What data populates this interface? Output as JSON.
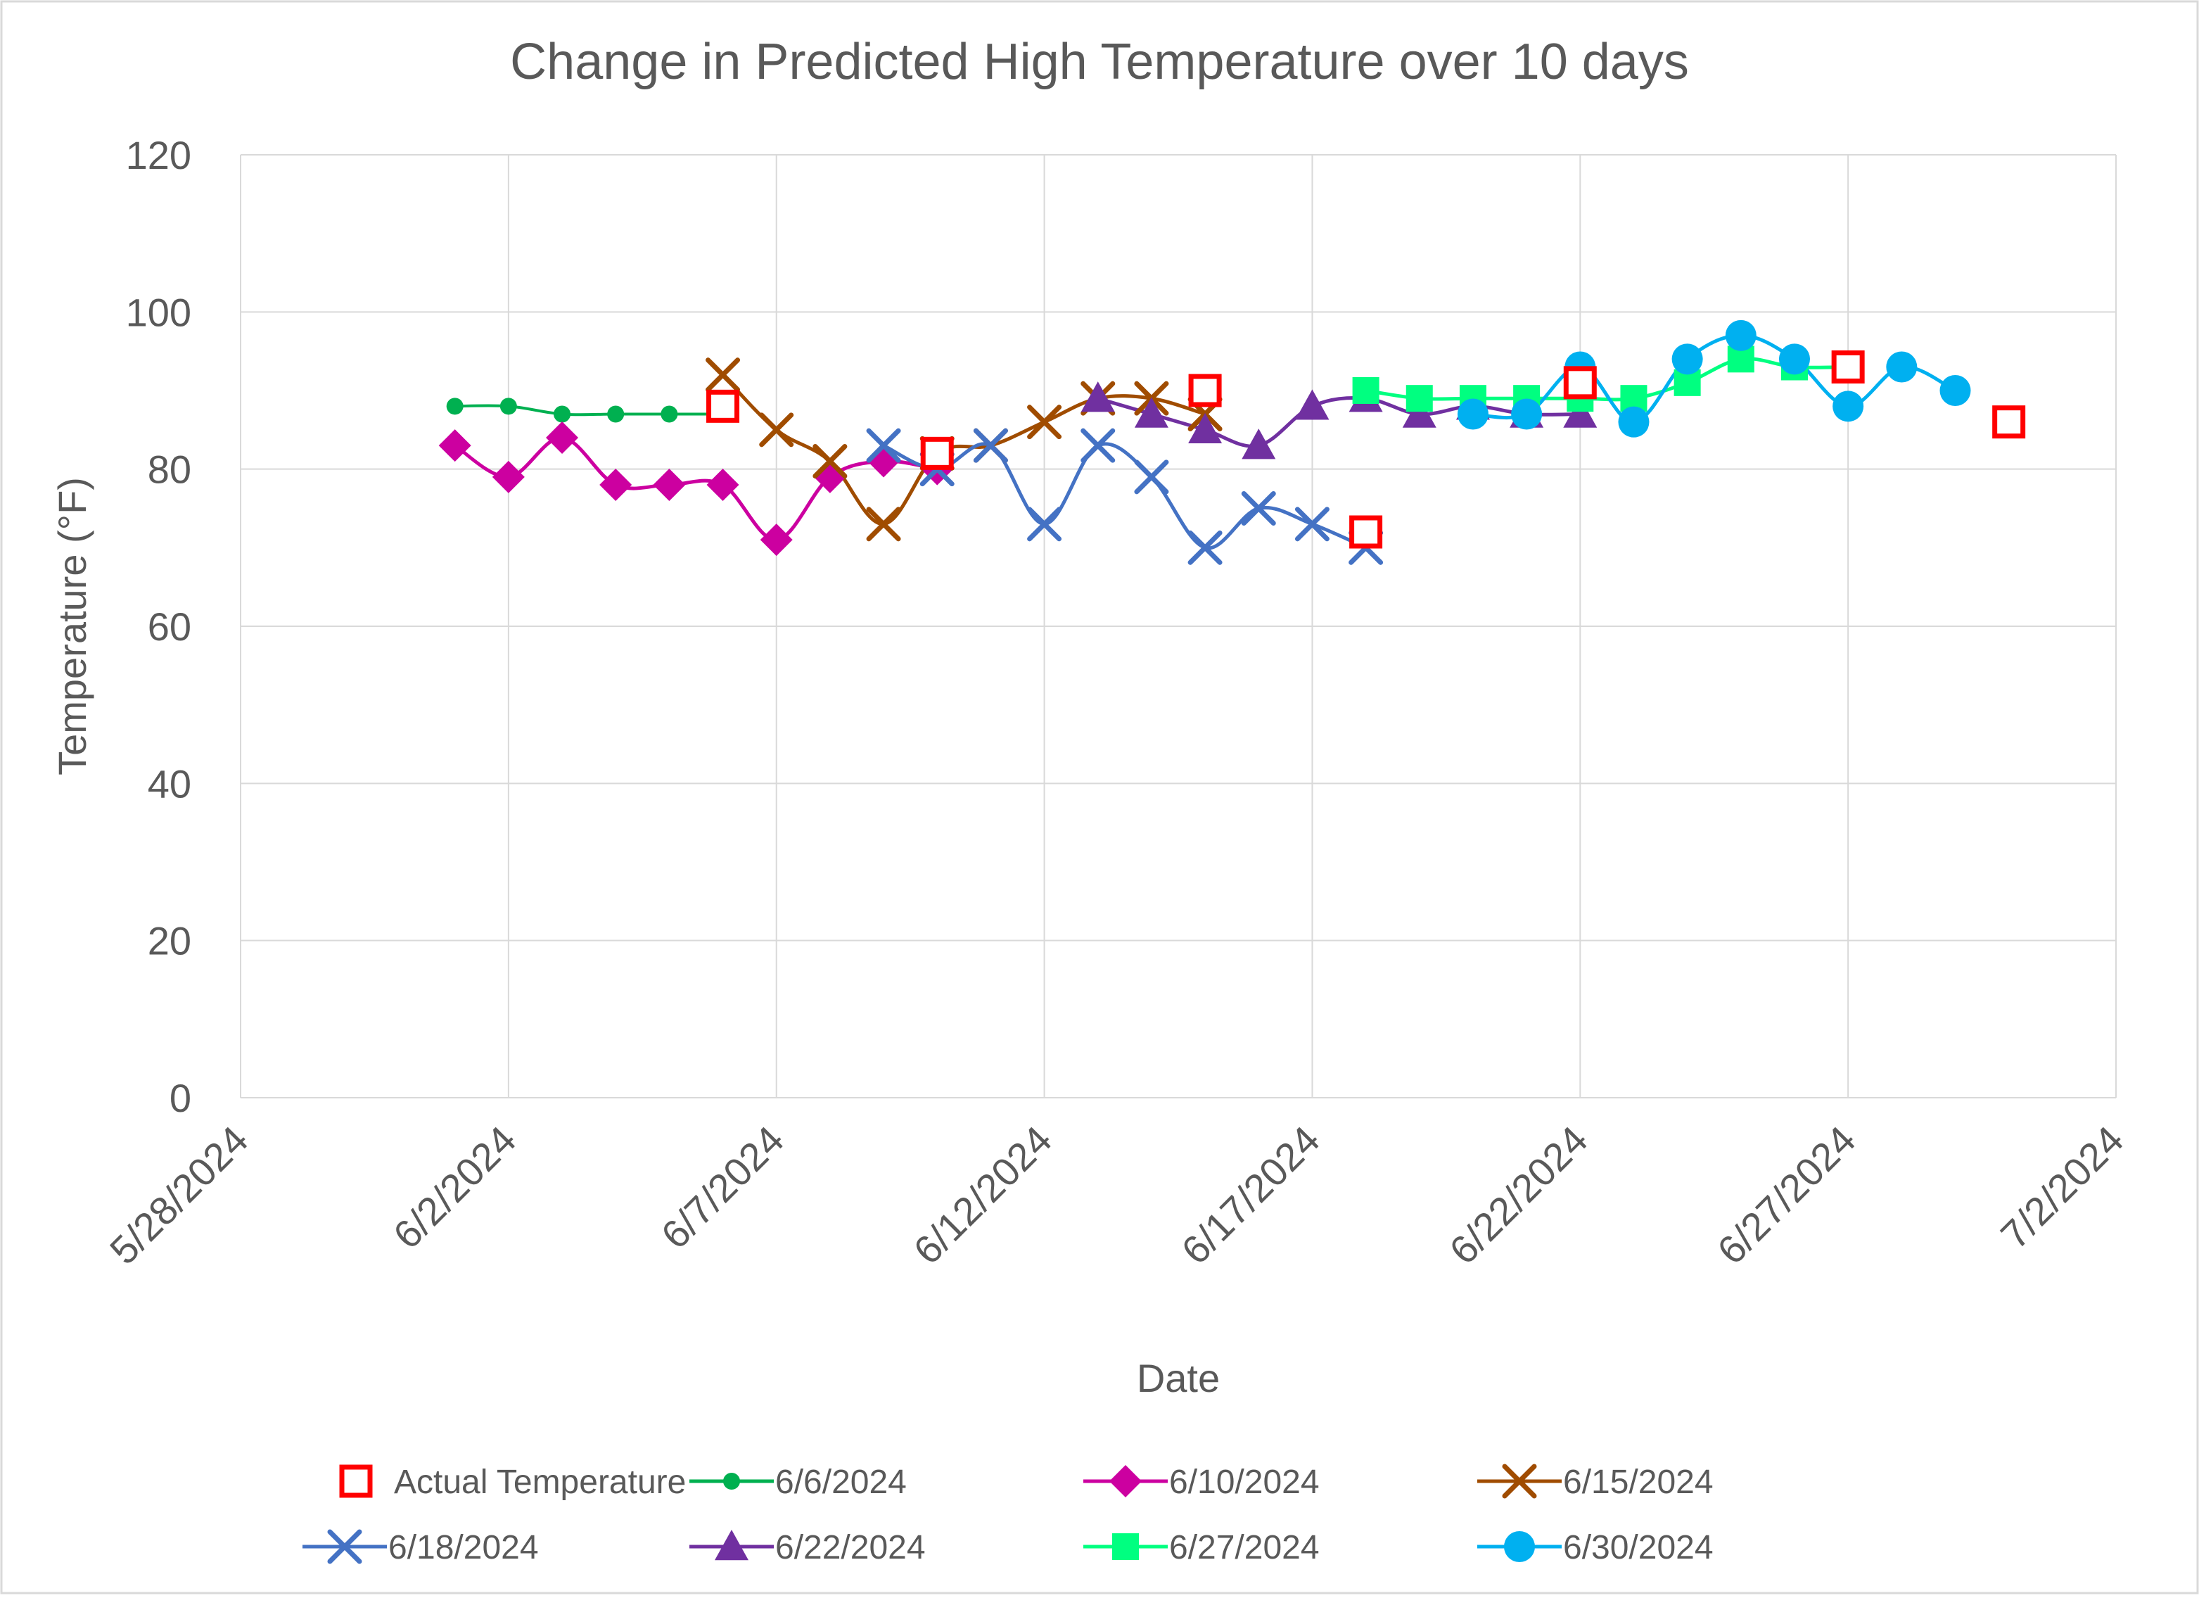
{
  "chart_data": {
    "type": "line",
    "title": "Change in Predicted High Temperature over 10 days",
    "xlabel": "Date",
    "ylabel": "Temperature (°F)",
    "xlim_days": [
      0,
      35
    ],
    "ylim": [
      0,
      120
    ],
    "x_ticks": [
      {
        "day": 0,
        "label": "5/28/2024"
      },
      {
        "day": 5,
        "label": "6/2/2024"
      },
      {
        "day": 10,
        "label": "6/7/2024"
      },
      {
        "day": 15,
        "label": "6/12/2024"
      },
      {
        "day": 20,
        "label": "6/17/2024"
      },
      {
        "day": 25,
        "label": "6/22/2024"
      },
      {
        "day": 30,
        "label": "6/27/2024"
      },
      {
        "day": 35,
        "label": "7/2/2024"
      }
    ],
    "y_ticks": [
      0,
      20,
      40,
      60,
      80,
      100,
      120
    ],
    "x_day_origin": "5/28/2024",
    "grid": true,
    "legend_position": "bottom",
    "series": [
      {
        "name": "Actual Temperature",
        "color": "#ff0000",
        "marker": "square-open",
        "line": false,
        "x": [
          9,
          13,
          18,
          21,
          25,
          30,
          33
        ],
        "y": [
          88,
          82,
          90,
          72,
          91,
          93,
          86
        ]
      },
      {
        "name": "6/6/2024",
        "color": "#00b050",
        "marker": "circle-small",
        "line": true,
        "x": [
          4,
          5,
          6,
          7,
          8,
          9
        ],
        "y": [
          88,
          88,
          87,
          87,
          87,
          87
        ]
      },
      {
        "name": "6/10/2024",
        "color": "#cc00a0",
        "marker": "diamond",
        "line": true,
        "x": [
          4,
          5,
          6,
          7,
          8,
          9,
          10,
          11,
          12,
          13
        ],
        "y": [
          83,
          79,
          84,
          78,
          78,
          78,
          71,
          79,
          81,
          80
        ]
      },
      {
        "name": "6/15/2024",
        "color": "#a04c00",
        "marker": "x",
        "line": true,
        "x": [
          9,
          10,
          11,
          12,
          13,
          14,
          15,
          16,
          17,
          18
        ],
        "y": [
          92,
          85,
          81,
          73,
          82,
          83,
          86,
          89,
          89,
          87
        ]
      },
      {
        "name": "6/18/2024",
        "color": "#4472c4",
        "marker": "x",
        "line": true,
        "x": [
          12,
          13,
          14,
          15,
          16,
          17,
          18,
          19,
          20,
          21
        ],
        "y": [
          83,
          80,
          83,
          73,
          83,
          79,
          70,
          75,
          73,
          70
        ]
      },
      {
        "name": "6/22/2024",
        "color": "#7030a0",
        "marker": "triangle",
        "line": true,
        "x": [
          16,
          17,
          18,
          19,
          20,
          21,
          22,
          23,
          24,
          25
        ],
        "y": [
          89,
          87,
          85,
          83,
          88,
          89,
          87,
          88,
          87,
          87
        ]
      },
      {
        "name": "6/27/2024",
        "color": "#00ff80",
        "marker": "square",
        "line": true,
        "x": [
          21,
          22,
          23,
          24,
          25,
          26,
          27,
          28,
          29,
          30
        ],
        "y": [
          90,
          89,
          89,
          89,
          89,
          89,
          91,
          94,
          93,
          93
        ]
      },
      {
        "name": "6/30/2024",
        "color": "#00b0f0",
        "marker": "circle",
        "line": true,
        "x": [
          23,
          24,
          25,
          26,
          27,
          28,
          29,
          30,
          31,
          32
        ],
        "y": [
          87,
          87,
          93,
          86,
          94,
          97,
          94,
          88,
          93,
          90
        ]
      }
    ]
  }
}
